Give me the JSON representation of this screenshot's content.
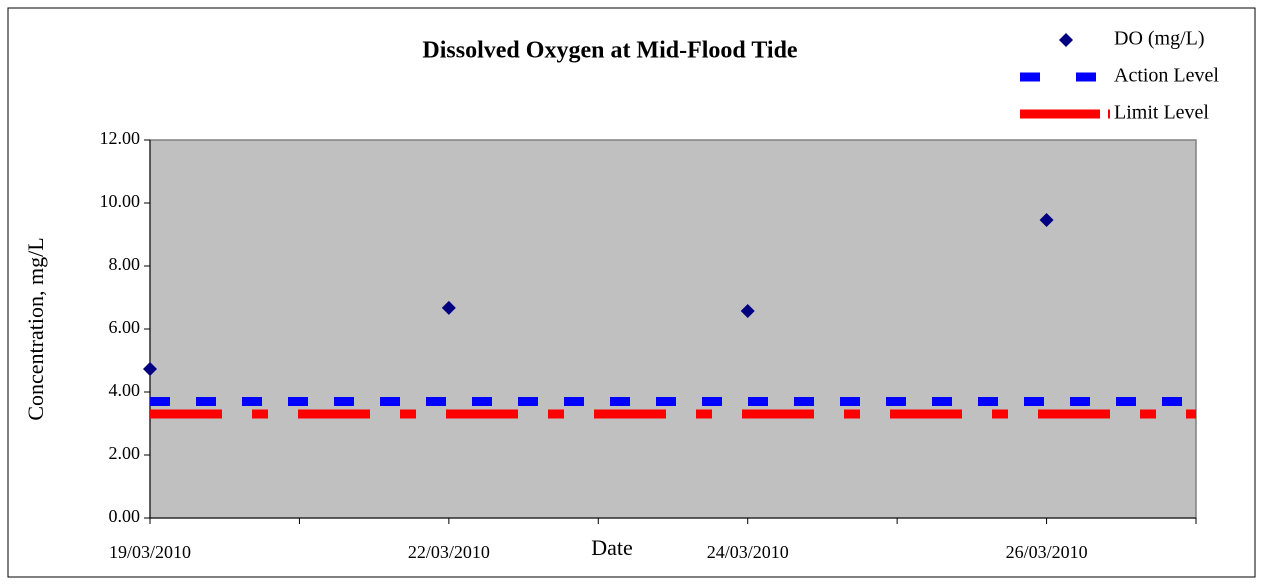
{
  "chart_data": {
    "type": "scatter",
    "title": "Dissolved Oxygen at Mid-Flood Tide",
    "x_label": "Date",
    "y_label": "Concentration, mg/L",
    "categories": [
      "19/03/2010",
      null,
      "22/03/2010",
      null,
      "24/03/2010",
      null,
      "26/03/2010",
      null
    ],
    "series": [
      {
        "name": "DO (mg/L)",
        "color": "#000080",
        "style": "marker",
        "values": [
          4.73,
          null,
          6.67,
          null,
          6.57,
          null,
          9.46,
          null
        ]
      },
      {
        "name": "Action Level",
        "color": "#0000ff",
        "style": "dash",
        "values": [
          3.7,
          3.7,
          3.7,
          3.7,
          3.7,
          3.7,
          3.7,
          3.7
        ]
      },
      {
        "name": "Limit Level",
        "color": "#ff0000",
        "style": "longdash",
        "values": [
          3.3,
          3.3,
          3.3,
          3.3,
          3.3,
          3.3,
          3.3,
          3.3
        ]
      }
    ],
    "ylim": [
      0,
      12
    ],
    "yticks": [
      {
        "value": 0,
        "label": "0.00"
      },
      {
        "value": 2,
        "label": "2.00"
      },
      {
        "value": 4,
        "label": "4.00"
      },
      {
        "value": 6,
        "label": "6.00"
      },
      {
        "value": 8,
        "label": "8.00"
      },
      {
        "value": 10,
        "label": "10.00"
      },
      {
        "value": 12,
        "label": "12.00"
      }
    ],
    "plot_background": "#c0c0c0",
    "legend": "top-right"
  }
}
